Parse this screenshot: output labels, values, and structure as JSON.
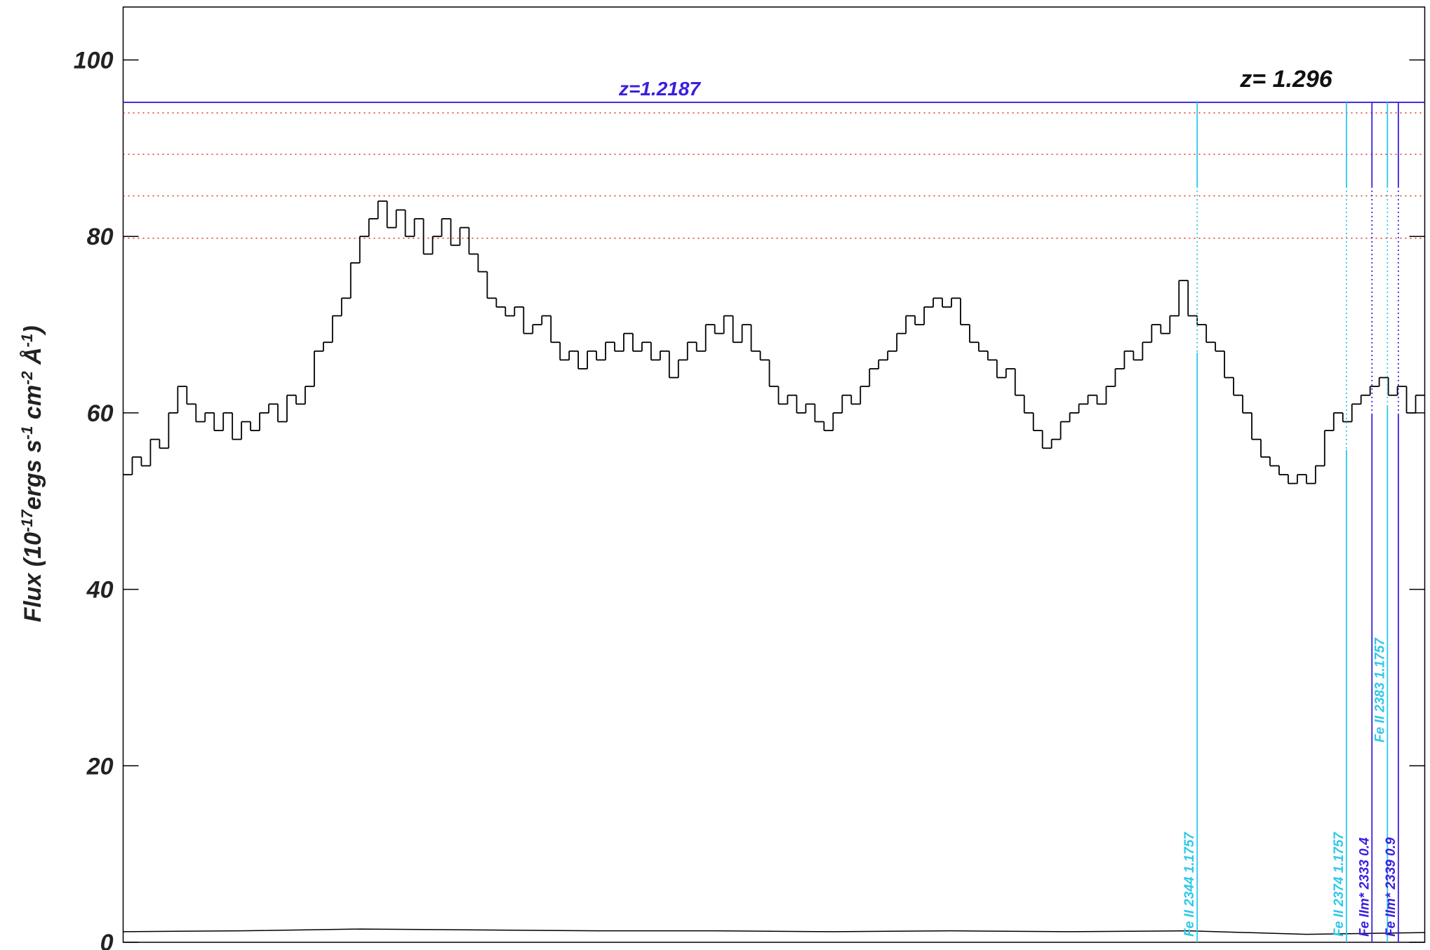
{
  "chart_data": {
    "type": "step",
    "ylabel": [
      "Flux (10",
      "-17",
      "ergs s",
      "-1",
      " cm",
      "-2",
      " Å",
      "-1",
      ")"
    ],
    "xlim": [
      0,
      143
    ],
    "ylim": [
      0,
      106
    ],
    "yticks": [
      0,
      20,
      40,
      60,
      80,
      100
    ],
    "series": [
      {
        "color": "#000000",
        "values": [
          53,
          55,
          54,
          57,
          56,
          60,
          63,
          61,
          59,
          60,
          58,
          60,
          57,
          59,
          58,
          60,
          61,
          59,
          62,
          61,
          63,
          67,
          68,
          71,
          73,
          77,
          80,
          82,
          84,
          81,
          83,
          80,
          82,
          78,
          80,
          82,
          79,
          81,
          78,
          76,
          73,
          72,
          71,
          72,
          69,
          70,
          71,
          68,
          66,
          67,
          65,
          67,
          66,
          68,
          67,
          69,
          67,
          68,
          66,
          67,
          64,
          66,
          68,
          67,
          70,
          69,
          71,
          68,
          70,
          67,
          66,
          63,
          61,
          62,
          60,
          61,
          59,
          58,
          60,
          62,
          61,
          63,
          65,
          66,
          67,
          69,
          71,
          70,
          72,
          73,
          72,
          73,
          70,
          68,
          67,
          66,
          64,
          65,
          62,
          60,
          58,
          56,
          57,
          59,
          60,
          61,
          62,
          61,
          63,
          65,
          67,
          66,
          68,
          70,
          69,
          71,
          75,
          71,
          70,
          68,
          67,
          64,
          62,
          60,
          57,
          55,
          54,
          53,
          52,
          53,
          52,
          54,
          58,
          60,
          59,
          61,
          62,
          63,
          64,
          62,
          63,
          60,
          62
        ]
      },
      {
        "color": "#000000",
        "x": [
          0,
          13,
          26,
          39,
          52,
          65,
          78,
          91,
          104,
          117,
          130,
          143
        ],
        "values": [
          1.2,
          1.3,
          1.5,
          1.4,
          1.3,
          1.3,
          1.2,
          1.3,
          1.2,
          1.3,
          0.9,
          1.1
        ]
      }
    ],
    "z_line": {
      "value": 95.2,
      "color": "#3a1fe0",
      "label": "z=1.2187"
    },
    "ref_lines": {
      "values": [
        94.0,
        89.3,
        84.6,
        79.8
      ],
      "color": "#e03020"
    },
    "annotation": "z= 1.296",
    "markers": [
      {
        "label": "Fe II 2344 1.1757",
        "x": 118,
        "color": "#2ec8ea"
      },
      {
        "label": "Fe II 2374 1.1757",
        "x": 134.4,
        "color": "#2ec8ea"
      },
      {
        "label": "Fe IIm* 2333 0.4",
        "x": 137.2,
        "color": "#3a1fe0"
      },
      {
        "label": "Fe II 2383 1.1757",
        "x": 138.9,
        "color": "#2ec8ea"
      },
      {
        "label": "Fe IIm* 2339 0.9",
        "x": 140.1,
        "color": "#3a1fe0"
      }
    ]
  }
}
